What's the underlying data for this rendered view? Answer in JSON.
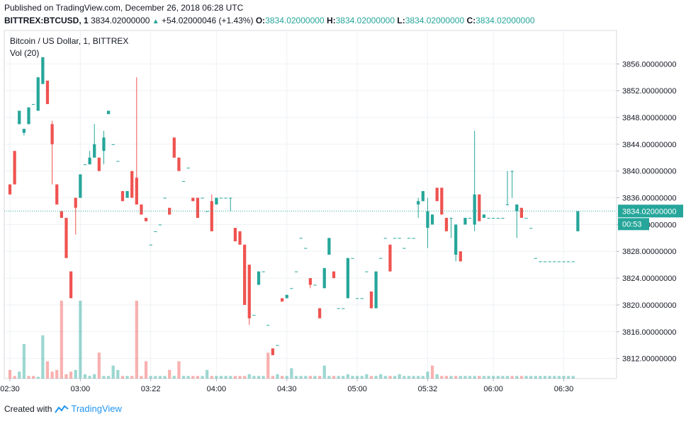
{
  "header": {
    "published": "Published on TradingView.com, December 26, 2018 06:28 UTC",
    "symbol": "BITTREX:BTCUSD, 1",
    "last": "3834.02000000",
    "change": "+54.02000046 (+1.43%)",
    "o_label": "O:",
    "o_value": "3834.02000000",
    "h_label": "H:",
    "h_value": "3834.02000000",
    "l_label": "L:",
    "l_value": "3834.02000000",
    "c_label": "C:",
    "c_value": "3834.02000000"
  },
  "footer": {
    "created_with": "Created with",
    "brand": "TradingView"
  },
  "colors": {
    "up": "#26a69a",
    "down": "#ef5350",
    "grid": "#eef1f5",
    "price_line": "#26a69a"
  },
  "chart_data": {
    "type": "candlestick",
    "title": "Bitcoin / US Dollar, 1, BITTREX",
    "volume_label": "Vol (20)",
    "ylim": [
      3809,
      3861
    ],
    "y_ticks": [
      "3856.00000000",
      "3852.00000000",
      "3848.00000000",
      "3844.00000000",
      "3840.00000000",
      "3836.00000000",
      "3832.00000000",
      "3828.00000000",
      "3824.00000000",
      "3820.00000000",
      "3816.00000000",
      "3812.00000000"
    ],
    "x_ticks": [
      "02:30",
      "03:00",
      "03:22",
      "04:00",
      "04:30",
      "05:00",
      "05:32",
      "06:00",
      "06:30"
    ],
    "current_price": "3834.02000000",
    "countdown": "00:53",
    "candles": [
      [
        3838,
        3836.5,
        3838,
        3836.5
      ],
      [
        3843,
        3838,
        3843,
        3838
      ],
      [
        3847,
        3849,
        3847,
        3849
      ],
      [
        3845.7,
        3846.3,
        3845.7,
        3845.3
      ],
      [
        3847,
        3849.5,
        3847,
        3849.5
      ],
      [
        3850,
        3850,
        3850,
        3850
      ],
      [
        3849,
        3854,
        3854,
        3849
      ],
      [
        3853,
        3857,
        3857,
        3853
      ],
      [
        3853.5,
        3850,
        3853.5,
        3850
      ],
      [
        3847,
        3844,
        3847.5,
        3838
      ],
      [
        3838,
        3835,
        3838,
        3835
      ],
      [
        3834,
        3833,
        3834,
        3833
      ],
      [
        3833,
        3827,
        3833,
        3827
      ],
      [
        3825,
        3821,
        3825,
        3821
      ],
      [
        3836,
        3834.5,
        3834.5,
        3830.5
      ],
      [
        3836,
        3839.5,
        3839.5,
        3836
      ],
      [
        3841,
        3841,
        3841,
        3841
      ],
      [
        3841,
        3842,
        3843,
        3841
      ],
      [
        3842,
        3844,
        3847,
        3842
      ],
      [
        3842,
        3840,
        3842,
        3840
      ],
      [
        3843,
        3845,
        3846,
        3841
      ],
      [
        3848.5,
        3849,
        3849,
        3848.5
      ],
      [
        3844,
        3844,
        3844,
        3844
      ],
      [
        3841.5,
        3841.5,
        3841.5,
        3841.5
      ],
      [
        3837,
        3835.5,
        3837,
        3835.5
      ],
      [
        3836,
        3837,
        3837,
        3836
      ],
      [
        3840,
        3836,
        3840,
        3836
      ],
      [
        3839,
        3835,
        3854,
        3835
      ],
      [
        3835,
        3833.5,
        3835,
        3833.5
      ],
      [
        3833,
        3832.5,
        3833,
        3832.5
      ],
      [
        3829,
        3829,
        3829,
        3829
      ],
      [
        3831,
        3831,
        3831,
        3831
      ],
      [
        3832,
        3832,
        3832,
        3832
      ],
      [
        3836,
        3836,
        3836,
        3836
      ],
      [
        3834.5,
        3833.5,
        3834.5,
        3833.5
      ],
      [
        3845,
        3842,
        3845,
        3842
      ],
      [
        3842,
        3840,
        3842,
        3840
      ],
      [
        3838.5,
        3838.5,
        3838.5,
        3838.5
      ],
      [
        3840.5,
        3840.5,
        3840.5,
        3840.5
      ],
      [
        3836,
        3835.5,
        3836,
        3835.5
      ],
      [
        3836,
        3833,
        3836,
        3833
      ],
      [
        3836,
        3836,
        3836,
        3836
      ],
      [
        3834,
        3834,
        3834,
        3834
      ],
      [
        3835.5,
        3831,
        3836.5,
        3831
      ],
      [
        3835,
        3836,
        3836,
        3835
      ],
      [
        3836,
        3836,
        3836,
        3836
      ],
      [
        3836,
        3836,
        3836,
        3836
      ],
      [
        3836,
        3836,
        3836,
        3834
      ],
      [
        3831.5,
        3829.5,
        3831.5,
        3829.5
      ],
      [
        3831,
        3829,
        3831,
        3829
      ],
      [
        3829,
        3820,
        3829,
        3820
      ],
      [
        3826,
        3818,
        3826,
        3817
      ],
      [
        3818.5,
        3818.5,
        3818.5,
        3818.5
      ],
      [
        3823,
        3825,
        3825,
        3823
      ],
      [
        3825,
        3825,
        3825,
        3825
      ],
      [
        3817,
        3817,
        3817,
        3817
      ],
      [
        3813.5,
        3812.5,
        3813.5,
        3812.5
      ],
      [
        3814,
        3814,
        3814,
        3814
      ],
      [
        3821,
        3820.5,
        3821,
        3820.5
      ],
      [
        3821,
        3821.5,
        3821.5,
        3821
      ],
      [
        3822.5,
        3822.5,
        3822.5,
        3822.5
      ],
      [
        3825,
        3825,
        3825,
        3825
      ],
      [
        3830,
        3830,
        3830,
        3830
      ],
      [
        3828.5,
        3828.5,
        3828.5,
        3828.5
      ],
      [
        3824,
        3823,
        3824,
        3822.5
      ],
      [
        3823,
        3823,
        3823,
        3823
      ],
      [
        3819.5,
        3818,
        3819.5,
        3818
      ],
      [
        3822.5,
        3825.5,
        3825.5,
        3822.5
      ],
      [
        3827.5,
        3830,
        3830,
        3827.5
      ],
      [
        3825,
        3824,
        3825,
        3824
      ],
      [
        3819.5,
        3819.5,
        3819.5,
        3819.5
      ],
      [
        3819.5,
        3819.5,
        3819.5,
        3819.5
      ],
      [
        3821,
        3827,
        3827,
        3821
      ],
      [
        3827,
        3827,
        3827,
        3827
      ],
      [
        3821,
        3821,
        3821,
        3821
      ],
      [
        3821,
        3821,
        3821,
        3821
      ],
      [
        3825,
        3825,
        3825,
        3825
      ],
      [
        3822,
        3819.5,
        3822,
        3819.5
      ],
      [
        3819.5,
        3825,
        3825,
        3819.5
      ],
      [
        3827,
        3827,
        3827,
        3827
      ],
      [
        3830,
        3830,
        3830,
        3830
      ],
      [
        3829,
        3825,
        3829,
        3825
      ],
      [
        3830,
        3830,
        3830,
        3830
      ],
      [
        3830,
        3830,
        3830,
        3830
      ],
      [
        3828.5,
        3828.5,
        3828.5,
        3828.5
      ],
      [
        3830,
        3830,
        3830,
        3830
      ],
      [
        3830,
        3830,
        3830,
        3830
      ],
      [
        3835,
        3835.5,
        3836,
        3833
      ],
      [
        3835.5,
        3837,
        3837,
        3835.5
      ],
      [
        3831.5,
        3834,
        3836,
        3828.5
      ],
      [
        3832,
        3833.5,
        3833.5,
        3832
      ],
      [
        3837.5,
        3835.5,
        3837.5,
        3835.5
      ],
      [
        3837.5,
        3833.5,
        3837.5,
        3833.5
      ],
      [
        3833,
        3831,
        3833,
        3831
      ],
      [
        3833,
        3833,
        3833,
        3830
      ],
      [
        3827.5,
        3832,
        3832,
        3826.5
      ],
      [
        3828,
        3826.5,
        3828,
        3826.5
      ],
      [
        3832,
        3833,
        3833,
        3832
      ],
      [
        3833,
        3833,
        3833,
        3833
      ],
      [
        3832,
        3836.5,
        3846,
        3831
      ],
      [
        3836.5,
        3832.5,
        3836.5,
        3832.5
      ],
      [
        3833,
        3833.5,
        3833.5,
        3833
      ],
      [
        3833,
        3833,
        3833,
        3833
      ],
      [
        3833,
        3833,
        3833,
        3833
      ],
      [
        3833,
        3833,
        3833,
        3833
      ],
      [
        3833,
        3833,
        3833,
        3833
      ],
      [
        3835,
        3835,
        3840,
        3835
      ],
      [
        3840,
        3840,
        3840,
        3836
      ],
      [
        3834,
        3835,
        3835,
        3830
      ],
      [
        3834.5,
        3833,
        3834.5,
        3833
      ],
      [
        3833,
        3833,
        3833,
        3833
      ],
      [
        3831.5,
        3831.5,
        3831.5,
        3831.5
      ],
      [
        3827,
        3827,
        3827,
        3827
      ],
      [
        3826.5,
        3826.5,
        3826.5,
        3826.5
      ],
      [
        3826.5,
        3826.5,
        3826.5,
        3826.5
      ],
      [
        3826.5,
        3826.5,
        3826.5,
        3826.5
      ],
      [
        3826.5,
        3826.5,
        3826.5,
        3826.5
      ],
      [
        3826.5,
        3826.5,
        3826.5,
        3826.5
      ],
      [
        3826.5,
        3826.5,
        3826.5,
        3826.5
      ],
      [
        3826.5,
        3826.5,
        3826.5,
        3826.5
      ],
      [
        3826.5,
        3826.5,
        3826.5,
        3826.5
      ],
      [
        3831,
        3834,
        3834,
        3831
      ]
    ],
    "volumes": [
      1,
      0.3,
      0.8,
      4,
      0.3,
      0.3,
      0.2,
      5,
      2,
      0.8,
      1,
      9,
      0.5,
      0.8,
      1,
      9,
      0.5,
      0.3,
      0.5,
      3,
      0.3,
      0.3,
      1.5,
      1,
      0.3,
      0.3,
      0.3,
      9,
      0.3,
      2,
      0.3,
      0.3,
      0.3,
      0.3,
      1,
      0.3,
      2,
      0.3,
      0.3,
      0.3,
      0.3,
      0.3,
      1,
      0.3,
      0.3,
      0.3,
      0.3,
      0.3,
      0.3,
      0.3,
      0.3,
      0.5,
      0.3,
      0.3,
      0.3,
      3,
      0.3,
      0.5,
      0.3,
      0.3,
      1.2,
      0.3,
      0.3,
      0.3,
      0.3,
      0.3,
      0.3,
      1.5,
      0.3,
      0.3,
      0.3,
      0.3,
      0.5,
      0.3,
      0.3,
      0.3,
      0.5,
      0.3,
      0.3,
      0.5,
      0.3,
      0.3,
      0.3,
      0.5,
      0.3,
      0.3,
      0.3,
      0.3,
      0.3,
      0.8,
      1.5,
      0.5,
      0.3,
      0.3,
      0.3,
      0.3,
      0.3,
      0.3,
      0.3,
      0.3,
      0.3,
      0.3,
      0.3,
      0.3,
      0.3,
      0.3,
      0.3,
      0.3,
      0.3,
      0.3,
      0.3,
      0.3,
      0.3,
      0.3,
      0.3,
      0.3,
      0.3,
      0.3,
      0.3,
      0.3,
      0.3
    ],
    "volume_colors": [
      "d",
      "d",
      "u",
      "u",
      "d",
      "d",
      "u",
      "u",
      "d",
      "d",
      "d",
      "d",
      "d",
      "d",
      "u",
      "u",
      "u",
      "u",
      "u",
      "d",
      "u",
      "u",
      "u",
      "u",
      "d",
      "u",
      "d",
      "d",
      "d",
      "d",
      "u",
      "u",
      "u",
      "u",
      "d",
      "u",
      "d",
      "u",
      "u",
      "d",
      "d",
      "u",
      "u",
      "d",
      "u",
      "u",
      "u",
      "u",
      "d",
      "d",
      "d",
      "u",
      "u",
      "u",
      "u",
      "d",
      "d",
      "u",
      "d",
      "u",
      "u",
      "u",
      "u",
      "u",
      "d",
      "u",
      "d",
      "u",
      "u",
      "d",
      "u",
      "u",
      "u",
      "u",
      "u",
      "u",
      "u",
      "d",
      "u",
      "u",
      "u",
      "d",
      "u",
      "u",
      "u",
      "u",
      "u",
      "u",
      "u",
      "u",
      "d",
      "u",
      "d",
      "d",
      "u",
      "d",
      "u",
      "u",
      "u",
      "u",
      "d",
      "u",
      "u",
      "u",
      "u",
      "u",
      "u",
      "d",
      "u",
      "d",
      "u",
      "u",
      "u",
      "u",
      "u",
      "u",
      "u",
      "u",
      "u",
      "u",
      "u"
    ]
  }
}
